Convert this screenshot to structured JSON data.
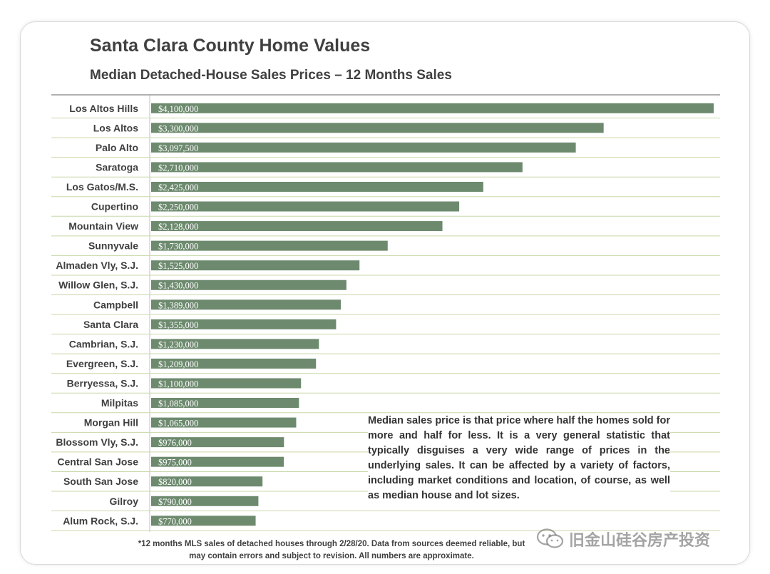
{
  "title": "Santa Clara County Home Values",
  "subtitle": "Median Detached-House Sales Prices – 12 Months Sales",
  "note": "Median sales price is that price where half the homes sold for more and half for less. It is a very general statistic that typically disguises a very wide range of prices in the underlying sales. It can be affected by a variety of factors, including market conditions and location, of course, as well as median house and lot sizes.",
  "footnote": "*12 months MLS sales of detached houses through 2/28/20. Data from sources deemed reliable, but may contain errors and subject to revision. All numbers are approximate.",
  "watermark": "旧金山硅谷房产投资",
  "watermark_icon": "wechat-icon",
  "colors": {
    "bar": "#6d8a6e",
    "bar_label": "#ffffff",
    "category_label": "#404040",
    "gridline": "#c9d7a8",
    "text": "#404040"
  },
  "chart_data": {
    "type": "bar",
    "orientation": "horizontal",
    "title": "Santa Clara County Home Values",
    "subtitle": "Median Detached-House Sales Prices – 12 Months Sales",
    "categories": [
      "Los Altos Hills",
      "Los Altos",
      "Palo Alto",
      "Saratoga",
      "Los Gatos/M.S.",
      "Cupertino",
      "Mountain View",
      "Sunnyvale",
      "Almaden Vly, S.J.",
      "Willow Glen, S.J.",
      "Campbell",
      "Santa Clara",
      "Cambrian, S.J.",
      "Evergreen, S.J.",
      "Berryessa, S.J.",
      "Milpitas",
      "Morgan Hill",
      "Blossom Vly, S.J.",
      "Central San Jose",
      "South San Jose",
      "Gilroy",
      "Alum Rock, S.J."
    ],
    "values": [
      4100000,
      3300000,
      3097500,
      2710000,
      2425000,
      2250000,
      2128000,
      1730000,
      1525000,
      1430000,
      1389000,
      1355000,
      1230000,
      1209000,
      1100000,
      1085000,
      1065000,
      976000,
      975000,
      820000,
      790000,
      770000
    ],
    "value_labels": [
      "$4,100,000",
      "$3,300,000",
      "$3,097,500",
      "$2,710,000",
      "$2,425,000",
      "$2,250,000",
      "$2,128,000",
      "$1,730,000",
      "$1,525,000",
      "$1,430,000",
      "$1,389,000",
      "$1,355,000",
      "$1,230,000",
      "$1,209,000",
      "$1,100,000",
      "$1,085,000",
      "$1,065,000",
      "$976,000",
      "$975,000",
      "$820,000",
      "$790,000",
      "$770,000"
    ],
    "xlim": [
      0,
      4100000
    ],
    "grid": true,
    "xlabel": "",
    "ylabel": ""
  }
}
